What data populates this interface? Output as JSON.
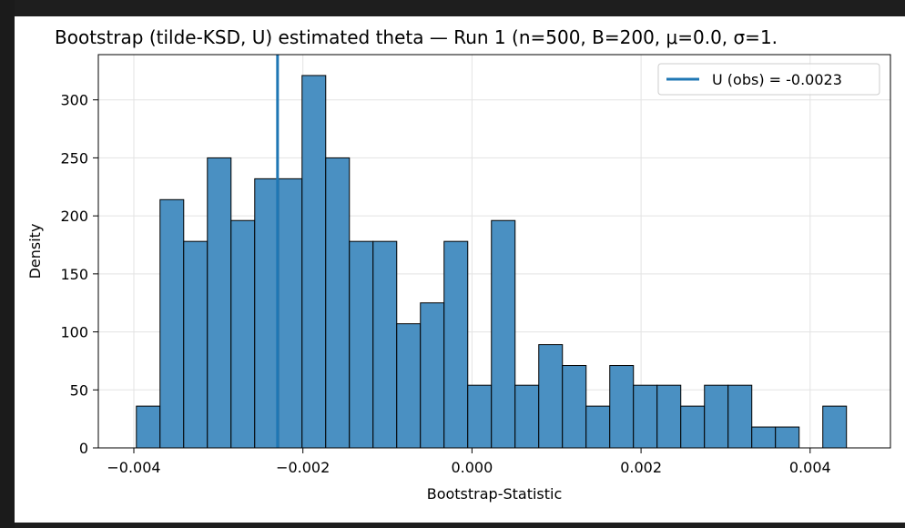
{
  "chart_data": {
    "type": "bar",
    "title": "Bootstrap (tilde-KSD, U) estimated theta — Run 1  (n=500, B=200, μ=0.0, σ=1.",
    "xlabel": "Bootstrap-Statistic",
    "ylabel": "Density",
    "xlim": [
      -0.00442,
      0.00495
    ],
    "ylim": [
      0,
      339
    ],
    "grid": true,
    "legend_placement": "top-right",
    "x_ticks": [
      -0.004,
      -0.002,
      0.0,
      0.002,
      0.004
    ],
    "x_tick_labels": [
      "−0.004",
      "−0.002",
      "0.000",
      "0.002",
      "0.004"
    ],
    "y_ticks": [
      0,
      50,
      100,
      150,
      200,
      250,
      300
    ],
    "y_tick_labels": [
      "0",
      "50",
      "100",
      "150",
      "200",
      "250",
      "300"
    ],
    "bin_start": -0.00397,
    "bin_width": 0.00028,
    "values": [
      36,
      214,
      178,
      250,
      196,
      232,
      232,
      321,
      250,
      178,
      178,
      107,
      125,
      178,
      54,
      196,
      54,
      89,
      71,
      36,
      71,
      54,
      54,
      36,
      54,
      54,
      18,
      18,
      0,
      36
    ],
    "bar_color": "#4a90c2",
    "bar_edge_color": "#000000",
    "vline": {
      "x": -0.0023,
      "color": "#1f77b4",
      "legend_label": "U (obs) = -0.0023"
    }
  }
}
